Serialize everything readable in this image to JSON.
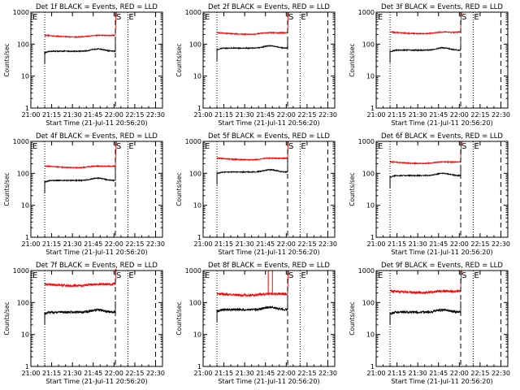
{
  "window": {
    "background": "#ffffff"
  },
  "colors": {
    "events": "#000000",
    "lld": "#ff0000",
    "frame": "#000000"
  },
  "chart_data": {
    "type": "line",
    "layout": "3x3 grid of panels",
    "y_scale": "log",
    "ylim": [
      1,
      1000
    ],
    "ylabel": "Counts/sec",
    "y_ticks": [
      1,
      10,
      100,
      1000
    ],
    "y_tick_labels": [
      "1",
      "10",
      "100",
      "1000"
    ],
    "x_tick_labels": [
      "21:00",
      "21:15",
      "21:30",
      "21:45",
      "22:00",
      "22:15",
      "22:30"
    ],
    "xlim": [
      "21:00",
      "22:35"
    ],
    "xlabel": "Start Time (21-Jul-11 20:56:20)",
    "vertical_markers": [
      {
        "time": "21:10",
        "style": "dotted",
        "label": ""
      },
      {
        "time": "22:01",
        "style": "dashed",
        "label": "S"
      },
      {
        "time": "22:10",
        "style": "dotted",
        "label": "E"
      },
      {
        "time": "22:30",
        "style": "dashed",
        "label": ""
      }
    ],
    "corner_label_start": "E",
    "series_names": [
      "BLACK = Events",
      "RED = LLD"
    ],
    "panels": [
      {
        "title": "Det 1f BLACK = Events, RED = LLD",
        "events_level": 60,
        "lld_level": 190,
        "noise": "low",
        "spikes": []
      },
      {
        "title": "Det 2f BLACK = Events, RED = LLD",
        "events_level": 75,
        "lld_level": 230,
        "noise": "low",
        "spikes": []
      },
      {
        "title": "Det 3f BLACK = Events, RED = LLD",
        "events_level": 65,
        "lld_level": 240,
        "noise": "low",
        "spikes": []
      },
      {
        "title": "Det 4f BLACK = Events, RED = LLD",
        "events_level": 60,
        "lld_level": 170,
        "noise": "low",
        "spikes": []
      },
      {
        "title": "Det 5f BLACK = Events, RED = LLD",
        "events_level": 110,
        "lld_level": 300,
        "noise": "low",
        "spikes": []
      },
      {
        "title": "Det 6f BLACK = Events, RED = LLD",
        "events_level": 85,
        "lld_level": 230,
        "noise": "low",
        "spikes": []
      },
      {
        "title": "Det 7f BLACK = Events, RED = LLD",
        "events_level": 50,
        "lld_level": 380,
        "noise": "high",
        "spikes": []
      },
      {
        "title": "Det 8f BLACK = Events, RED = LLD",
        "events_level": 60,
        "lld_level": 190,
        "noise": "high",
        "spikes": [
          "21:47",
          "21:50"
        ]
      },
      {
        "title": "Det 9f BLACK = Events, RED = LLD",
        "events_level": 50,
        "lld_level": 230,
        "noise": "high",
        "spikes": []
      }
    ]
  }
}
